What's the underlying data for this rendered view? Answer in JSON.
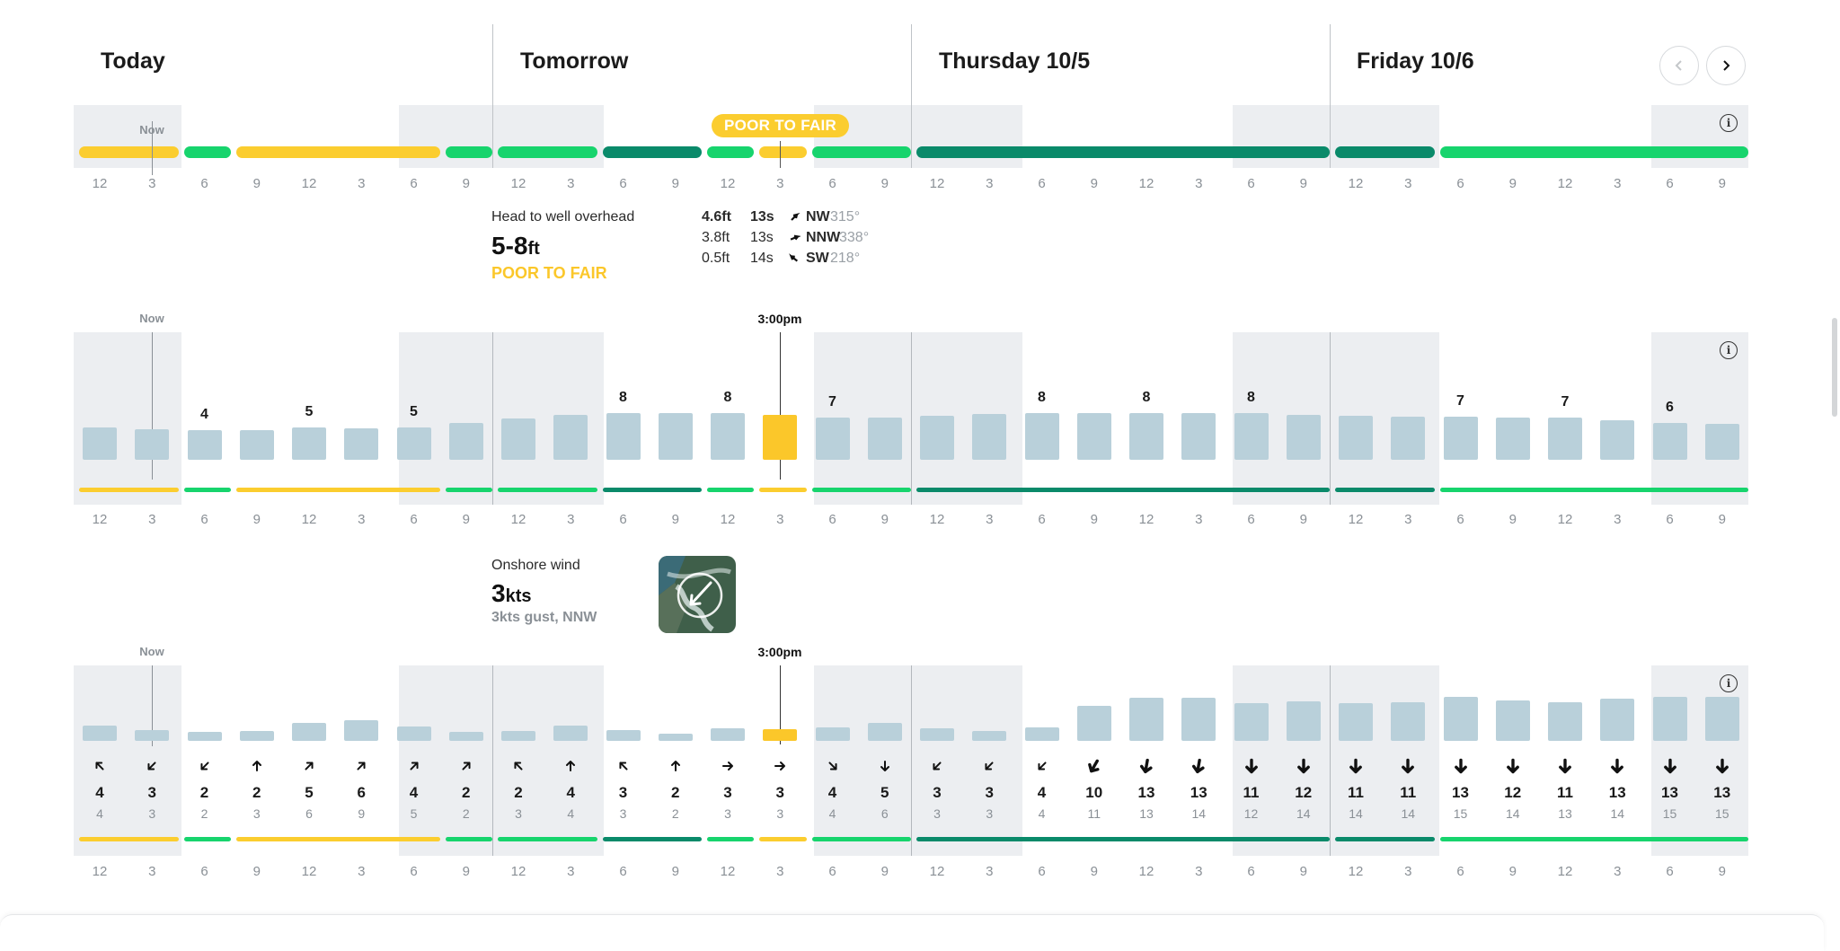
{
  "days": [
    {
      "label": "Today",
      "x": 112
    },
    {
      "label": "Tomorrow",
      "x": 579
    },
    {
      "label": "Thursday 10/5",
      "x": 1045
    },
    {
      "label": "Friday 10/6",
      "x": 1510
    }
  ],
  "ticks": [
    "12",
    "3",
    "6",
    "9",
    "12",
    "3",
    "6",
    "9",
    "12",
    "3",
    "6",
    "9",
    "12",
    "3",
    "6",
    "9",
    "12",
    "3",
    "6",
    "9",
    "12",
    "3",
    "6",
    "9",
    "12",
    "3",
    "6",
    "9",
    "12",
    "3",
    "6",
    "9"
  ],
  "now_label": "Now",
  "selected_time": "3:00pm",
  "rating_badge": "POOR TO FAIR",
  "colors": {
    "poor_fair": "#fbcd2f",
    "fair": "#17d46d",
    "good": "#0a8a6a",
    "bar": "#b9d0da",
    "shade": "#eceef1"
  },
  "surf_summary": {
    "description": "Head to well overhead",
    "height_value": "5-8",
    "height_unit": "ft",
    "rating": "POOR TO FAIR",
    "swells": [
      {
        "height": "4.6ft",
        "period": "13s",
        "dir": "NW",
        "deg": "315°",
        "bold": true,
        "rot": 315
      },
      {
        "height": "3.8ft",
        "period": "13s",
        "dir": "NNW",
        "deg": "338°",
        "bold": false,
        "rot": 338
      },
      {
        "height": "0.5ft",
        "period": "14s",
        "dir": "SW",
        "deg": "218°",
        "bold": false,
        "rot": 218
      }
    ]
  },
  "wind_summary": {
    "title": "Onshore wind",
    "speed_value": "3",
    "speed_unit": "kts",
    "gust": "3kts gust, NNW"
  },
  "surf_bars": [
    {
      "h": 36,
      "label": ""
    },
    {
      "h": 34,
      "label": ""
    },
    {
      "h": 33,
      "label": "4"
    },
    {
      "h": 33,
      "label": ""
    },
    {
      "h": 36,
      "label": "5"
    },
    {
      "h": 35,
      "label": ""
    },
    {
      "h": 36,
      "label": "5"
    },
    {
      "h": 41,
      "label": ""
    },
    {
      "h": 46,
      "label": ""
    },
    {
      "h": 50,
      "label": ""
    },
    {
      "h": 52,
      "label": "8"
    },
    {
      "h": 52,
      "label": ""
    },
    {
      "h": 52,
      "label": "8"
    },
    {
      "h": 50,
      "label": ""
    },
    {
      "h": 47,
      "label": "7"
    },
    {
      "h": 47,
      "label": ""
    },
    {
      "h": 49,
      "label": ""
    },
    {
      "h": 51,
      "label": ""
    },
    {
      "h": 52,
      "label": "8"
    },
    {
      "h": 52,
      "label": ""
    },
    {
      "h": 52,
      "label": "8"
    },
    {
      "h": 52,
      "label": ""
    },
    {
      "h": 52,
      "label": "8"
    },
    {
      "h": 50,
      "label": ""
    },
    {
      "h": 49,
      "label": ""
    },
    {
      "h": 48,
      "label": ""
    },
    {
      "h": 48,
      "label": "7"
    },
    {
      "h": 47,
      "label": ""
    },
    {
      "h": 47,
      "label": "7"
    },
    {
      "h": 44,
      "label": ""
    },
    {
      "h": 41,
      "label": "6"
    },
    {
      "h": 40,
      "label": ""
    }
  ],
  "wind": [
    {
      "s": "4",
      "g": "4",
      "h": 17,
      "r": 45
    },
    {
      "s": "3",
      "g": "3",
      "h": 12,
      "r": -45
    },
    {
      "s": "2",
      "g": "2",
      "h": 10,
      "r": -45
    },
    {
      "s": "2",
      "g": "3",
      "h": 11,
      "r": 90
    },
    {
      "s": "5",
      "g": "6",
      "h": 20,
      "r": 135
    },
    {
      "s": "6",
      "g": "9",
      "h": 23,
      "r": 135
    },
    {
      "s": "4",
      "g": "5",
      "h": 16,
      "r": 135
    },
    {
      "s": "2",
      "g": "2",
      "h": 10,
      "r": 135
    },
    {
      "s": "2",
      "g": "3",
      "h": 11,
      "r": 45
    },
    {
      "s": "4",
      "g": "4",
      "h": 17,
      "r": 90
    },
    {
      "s": "3",
      "g": "3",
      "h": 12,
      "r": 45
    },
    {
      "s": "2",
      "g": "2",
      "h": 8,
      "r": 90
    },
    {
      "s": "3",
      "g": "3",
      "h": 14,
      "r": 180
    },
    {
      "s": "3",
      "g": "3",
      "h": 13,
      "r": 180
    },
    {
      "s": "4",
      "g": "4",
      "h": 15,
      "r": -135
    },
    {
      "s": "5",
      "g": "6",
      "h": 20,
      "r": -90
    },
    {
      "s": "3",
      "g": "3",
      "h": 14,
      "r": -45
    },
    {
      "s": "3",
      "g": "3",
      "h": 11,
      "r": -45
    },
    {
      "s": "4",
      "g": "4",
      "h": 15,
      "r": -45
    },
    {
      "s": "10",
      "g": "11",
      "h": 39,
      "r": -60
    },
    {
      "s": "13",
      "g": "13",
      "h": 48,
      "r": -80
    },
    {
      "s": "13",
      "g": "14",
      "h": 48,
      "r": -80
    },
    {
      "s": "11",
      "g": "12",
      "h": 42,
      "r": -90
    },
    {
      "s": "12",
      "g": "14",
      "h": 44,
      "r": -90
    },
    {
      "s": "11",
      "g": "14",
      "h": 42,
      "r": -90
    },
    {
      "s": "11",
      "g": "14",
      "h": 43,
      "r": -90
    },
    {
      "s": "13",
      "g": "15",
      "h": 49,
      "r": -90
    },
    {
      "s": "12",
      "g": "14",
      "h": 45,
      "r": -90
    },
    {
      "s": "11",
      "g": "13",
      "h": 43,
      "r": -90
    },
    {
      "s": "13",
      "g": "14",
      "h": 47,
      "r": -90
    },
    {
      "s": "13",
      "g": "15",
      "h": 49,
      "r": -90
    },
    {
      "s": "13",
      "g": "15",
      "h": 49,
      "r": -90
    }
  ],
  "ratings": [
    {
      "from": 0,
      "to": 2,
      "c": "poor_fair"
    },
    {
      "from": 2,
      "to": 3,
      "c": "fair"
    },
    {
      "from": 3,
      "to": 7,
      "c": "poor_fair"
    },
    {
      "from": 7,
      "to": 8,
      "c": "fair"
    },
    {
      "from": 8,
      "to": 10,
      "c": "fair"
    },
    {
      "from": 10,
      "to": 12,
      "c": "good"
    },
    {
      "from": 12,
      "to": 13,
      "c": "fair"
    },
    {
      "from": 13,
      "to": 14,
      "c": "poor_fair"
    },
    {
      "from": 14,
      "to": 16,
      "c": "fair"
    },
    {
      "from": 16,
      "to": 24,
      "c": "good"
    },
    {
      "from": 24,
      "to": 26,
      "c": "good"
    },
    {
      "from": 26,
      "to": 32,
      "c": "fair"
    }
  ]
}
